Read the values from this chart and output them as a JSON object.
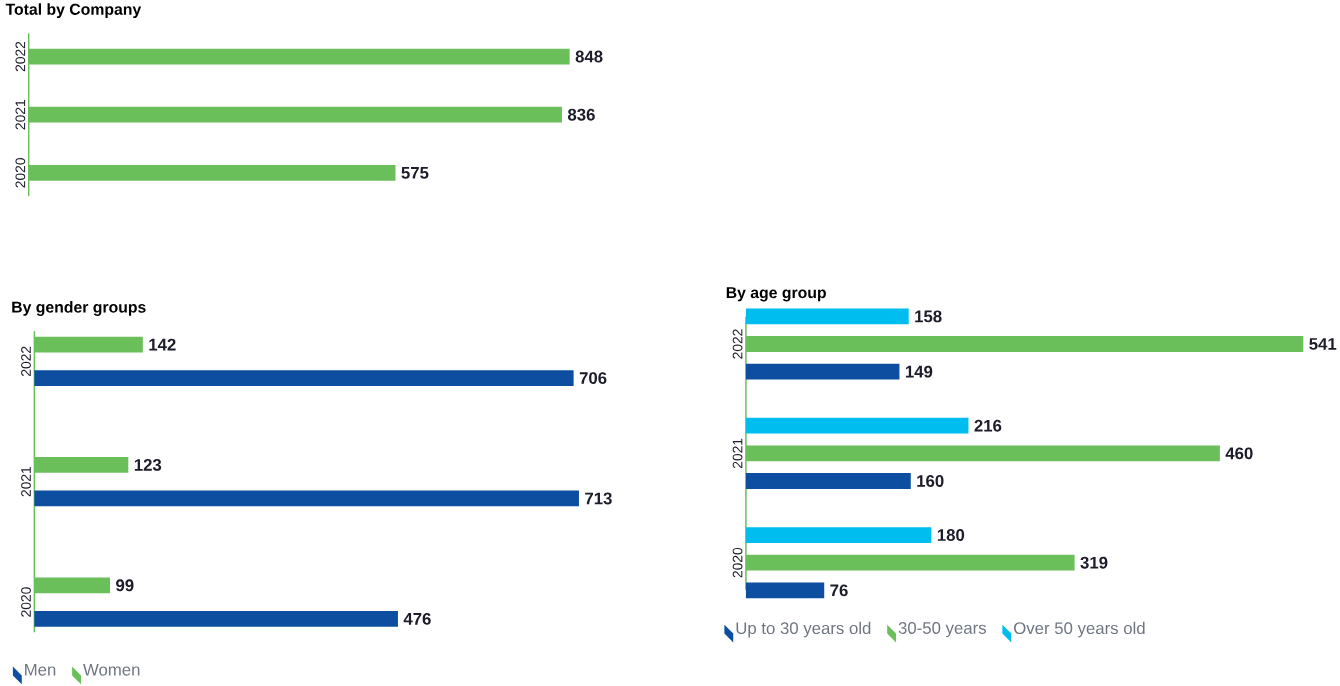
{
  "chart_data": [
    {
      "type": "bar",
      "orientation": "horizontal",
      "title": "Total by Company",
      "categories": [
        "2022",
        "2021",
        "2020"
      ],
      "series": [
        {
          "color": "#6abf5b",
          "values": [
            848,
            836,
            575
          ]
        }
      ],
      "data_labels": true,
      "legend": false
    },
    {
      "type": "bar",
      "orientation": "horizontal",
      "title": "By gender groups",
      "categories": [
        "2022",
        "2021",
        "2020"
      ],
      "series": [
        {
          "name": "Men",
          "color": "#0d4ea0",
          "values": [
            706,
            713,
            476
          ]
        },
        {
          "name": "Women",
          "color": "#6abf5b",
          "values": [
            142,
            123,
            99
          ]
        }
      ],
      "data_labels": true,
      "legend": "bottom left"
    },
    {
      "type": "bar",
      "orientation": "horizontal",
      "title": "By age group",
      "categories": [
        "2022",
        "2021",
        "2020"
      ],
      "series": [
        {
          "name": "Up to 30 years old",
          "color": "#0d4ea0",
          "values": [
            149,
            160,
            76
          ]
        },
        {
          "name": "30-50 years",
          "color": "#6abf5b",
          "values": [
            541,
            460,
            319
          ]
        },
        {
          "name": "Over 50 years old",
          "color": "#00bdf0",
          "values": [
            158,
            216,
            180
          ]
        }
      ],
      "data_labels": true,
      "legend": "bottom left"
    }
  ]
}
